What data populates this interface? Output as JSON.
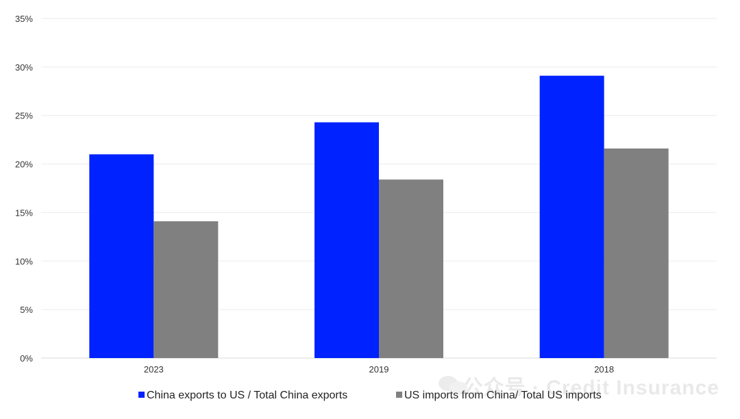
{
  "chart_data": {
    "type": "bar",
    "categories": [
      "2023",
      "2019",
      "2018"
    ],
    "series": [
      {
        "name": "China exports to US / Total China exports",
        "color": "#0022ff",
        "values": [
          21.0,
          24.3,
          29.1
        ]
      },
      {
        "name": "US imports from China/ Total US imports",
        "color": "#808080",
        "values": [
          14.1,
          18.4,
          21.6
        ]
      }
    ],
    "ylim": [
      0,
      35
    ],
    "yticks": [
      0,
      5,
      10,
      15,
      20,
      25,
      30,
      35
    ],
    "ytick_labels": [
      "0%",
      "5%",
      "10%",
      "15%",
      "20%",
      "25%",
      "30%",
      "35%"
    ],
    "grid": true,
    "legend_position": "bottom"
  },
  "watermark": {
    "icon": "wechat-icon",
    "text": "公众号 · Credit Insurance"
  }
}
